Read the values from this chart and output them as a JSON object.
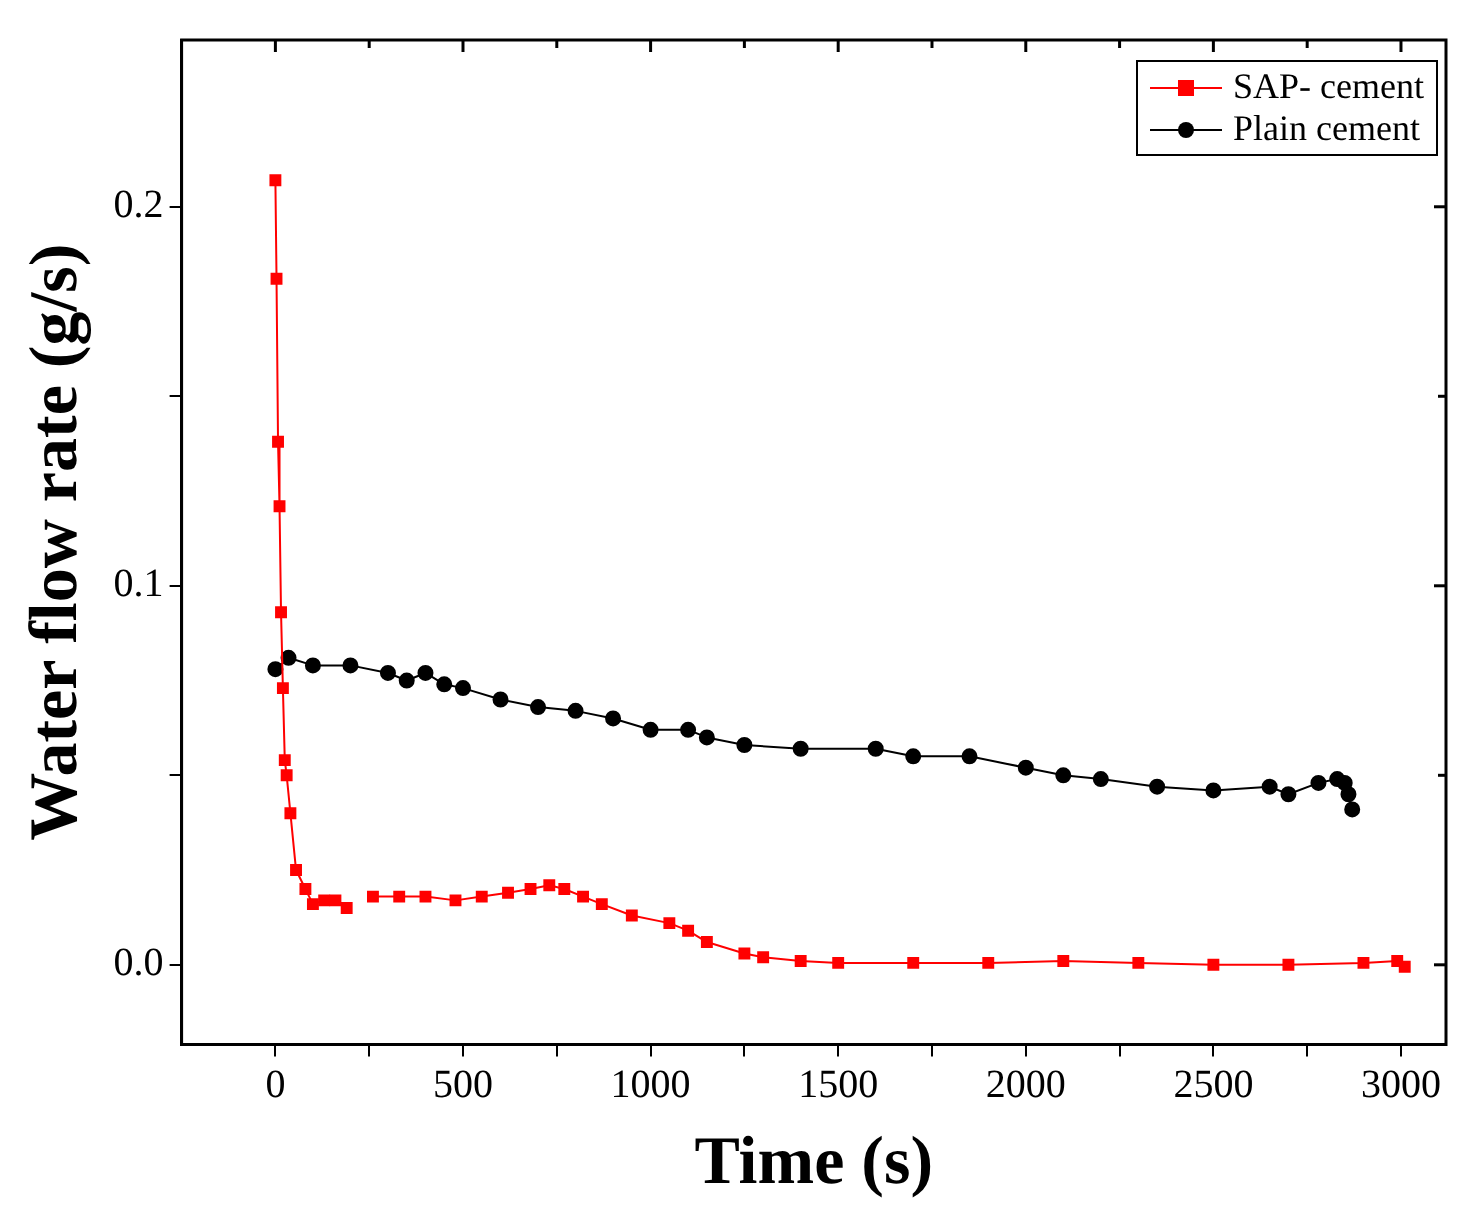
{
  "chart_data": {
    "type": "line",
    "xlabel": "Time (s)",
    "ylabel": "Water flow rate (g/s)",
    "xlim": [
      -250,
      3120
    ],
    "ylim": [
      -0.021,
      0.244
    ],
    "xticks": [
      0,
      {
        "value": 250,
        "label": null
      },
      500,
      {
        "value": 750,
        "label": null
      },
      1000,
      {
        "value": 1250,
        "label": null
      },
      1500,
      {
        "value": 1750,
        "label": null
      },
      2000,
      {
        "value": 2250,
        "label": null
      },
      2500,
      {
        "value": 2750,
        "label": null
      },
      3000
    ],
    "yticks": [
      {
        "value": 0,
        "label": "0.0"
      },
      {
        "value": 0.05,
        "label": null
      },
      0.1,
      {
        "value": 0.15,
        "label": null
      },
      0.2
    ],
    "grid": false,
    "legend": "top right",
    "line_style": "solid",
    "series": [
      {
        "name": "SAP- cement",
        "color": "#ff0000",
        "marker": "square",
        "x": [
          0,
          3,
          7,
          11,
          15,
          20,
          25,
          30,
          40,
          55,
          80,
          100,
          130,
          160,
          190,
          220,
          260,
          330,
          400,
          480,
          550,
          620,
          680,
          730,
          770,
          820,
          870,
          950,
          1050,
          1100,
          1150,
          1250,
          1300,
          1400,
          1500,
          1700,
          1900,
          2100,
          2300,
          2500,
          2700,
          2900,
          2990,
          3010
        ],
        "values": [
          0.207,
          0.181,
          0.138,
          0.121,
          0.093,
          0.073,
          0.054,
          0.05,
          0.04,
          0.025,
          0.02,
          0.016,
          0.017,
          0.017,
          0.015,
          null,
          0.018,
          0.018,
          0.018,
          0.017,
          0.018,
          0.019,
          0.02,
          0.021,
          0.02,
          0.018,
          0.016,
          0.013,
          0.011,
          0.009,
          0.006,
          0.003,
          0.002,
          0.001,
          0.0005,
          0.0005,
          0.0005,
          0.001,
          0.0005,
          0,
          0,
          0.0005,
          0.001,
          -0.0005
        ]
      },
      {
        "name": "Plain cement",
        "color": "#000000",
        "marker": "circle",
        "x": [
          0,
          35,
          100,
          200,
          300,
          350,
          400,
          450,
          500,
          600,
          700,
          800,
          900,
          1000,
          1100,
          1150,
          1250,
          1400,
          1600,
          1700,
          1850,
          2000,
          2100,
          2200,
          2350,
          2500,
          2650,
          2700,
          2780,
          2830,
          2850,
          2860,
          2870
        ],
        "values": [
          0.078,
          0.081,
          0.079,
          0.079,
          0.077,
          0.075,
          0.077,
          0.074,
          0.073,
          0.07,
          0.068,
          0.067,
          0.065,
          0.062,
          0.062,
          0.06,
          0.058,
          0.057,
          0.057,
          0.055,
          0.055,
          0.052,
          0.05,
          0.049,
          0.047,
          0.046,
          0.047,
          0.045,
          0.048,
          0.049,
          0.048,
          0.045,
          0.041
        ]
      }
    ]
  }
}
